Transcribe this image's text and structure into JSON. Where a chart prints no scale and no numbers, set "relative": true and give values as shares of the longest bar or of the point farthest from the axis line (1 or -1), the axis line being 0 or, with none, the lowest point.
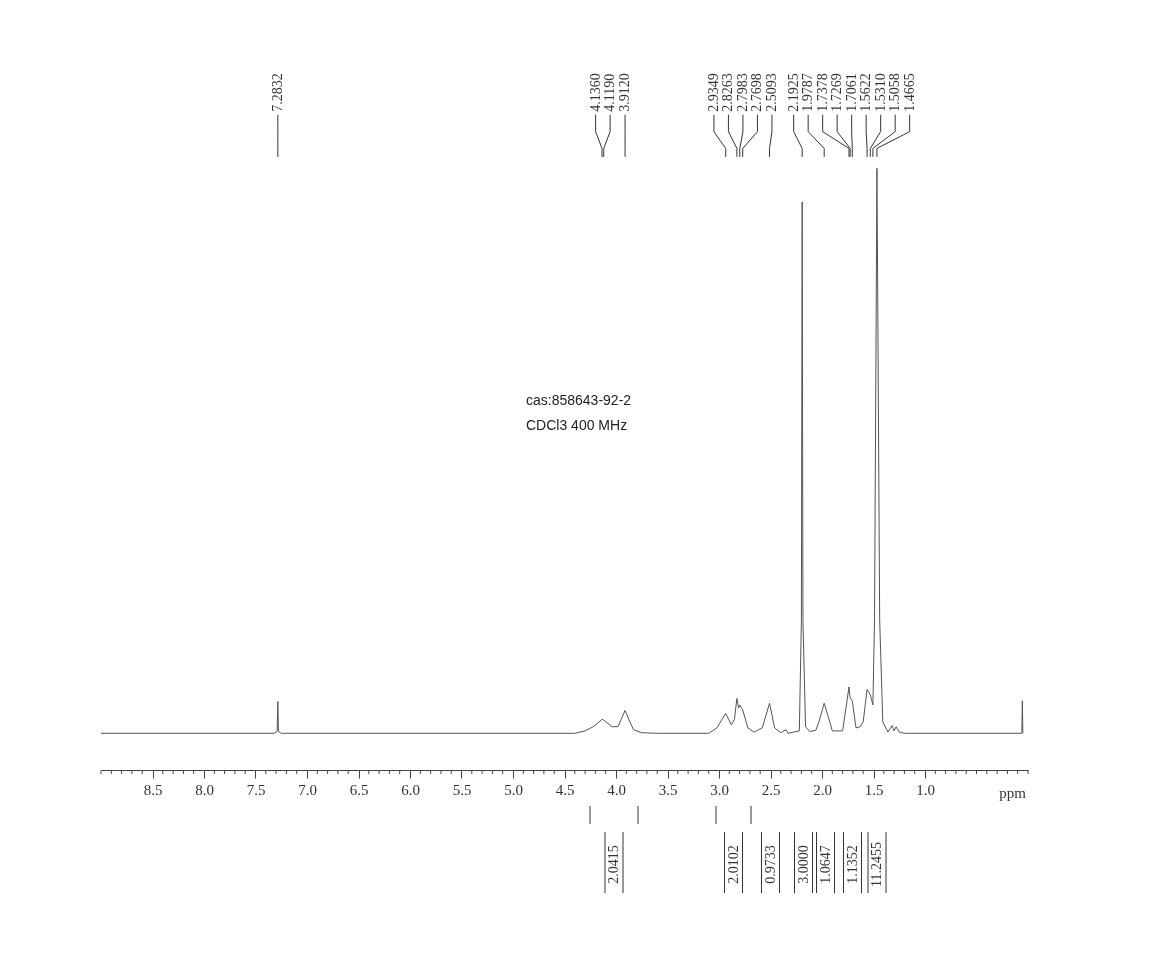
{
  "chart_data": {
    "type": "line",
    "relative": true,
    "xlabel": "ppm",
    "xlim": [
      9.0,
      0.0
    ],
    "xticks": [
      {
        "value": 9.0,
        "label": null
      },
      {
        "value": 8.9,
        "label": null
      },
      {
        "value": 8.8,
        "label": null
      },
      {
        "value": 8.7,
        "label": null
      },
      {
        "value": 8.6,
        "label": null
      },
      {
        "value": 8.5,
        "label": "8.5"
      },
      {
        "value": 8.4,
        "label": null
      },
      {
        "value": 8.3,
        "label": null
      },
      {
        "value": 8.2,
        "label": null
      },
      {
        "value": 8.1,
        "label": null
      },
      {
        "value": 8.0,
        "label": "8.0"
      },
      {
        "value": 7.9,
        "label": null
      },
      {
        "value": 7.8,
        "label": null
      },
      {
        "value": 7.7,
        "label": null
      },
      {
        "value": 7.6,
        "label": null
      },
      {
        "value": 7.5,
        "label": "7.5"
      },
      {
        "value": 7.4,
        "label": null
      },
      {
        "value": 7.3,
        "label": null
      },
      {
        "value": 7.2,
        "label": null
      },
      {
        "value": 7.1,
        "label": null
      },
      {
        "value": 7.0,
        "label": "7.0"
      },
      {
        "value": 6.9,
        "label": null
      },
      {
        "value": 6.8,
        "label": null
      },
      {
        "value": 6.7,
        "label": null
      },
      {
        "value": 6.6,
        "label": null
      },
      {
        "value": 6.5,
        "label": "6.5"
      },
      {
        "value": 6.4,
        "label": null
      },
      {
        "value": 6.3,
        "label": null
      },
      {
        "value": 6.2,
        "label": null
      },
      {
        "value": 6.1,
        "label": null
      },
      {
        "value": 6.0,
        "label": "6.0"
      },
      {
        "value": 5.9,
        "label": null
      },
      {
        "value": 5.8,
        "label": null
      },
      {
        "value": 5.7,
        "label": null
      },
      {
        "value": 5.6,
        "label": null
      },
      {
        "value": 5.5,
        "label": "5.5"
      },
      {
        "value": 5.4,
        "label": null
      },
      {
        "value": 5.3,
        "label": null
      },
      {
        "value": 5.2,
        "label": null
      },
      {
        "value": 5.1,
        "label": null
      },
      {
        "value": 5.0,
        "label": "5.0"
      },
      {
        "value": 4.9,
        "label": null
      },
      {
        "value": 4.8,
        "label": null
      },
      {
        "value": 4.7,
        "label": null
      },
      {
        "value": 4.6,
        "label": null
      },
      {
        "value": 4.5,
        "label": "4.5"
      },
      {
        "value": 4.4,
        "label": null
      },
      {
        "value": 4.3,
        "label": null
      },
      {
        "value": 4.2,
        "label": null
      },
      {
        "value": 4.1,
        "label": null
      },
      {
        "value": 4.0,
        "label": "4.0"
      },
      {
        "value": 3.9,
        "label": null
      },
      {
        "value": 3.8,
        "label": null
      },
      {
        "value": 3.7,
        "label": null
      },
      {
        "value": 3.6,
        "label": null
      },
      {
        "value": 3.5,
        "label": "3.5"
      },
      {
        "value": 3.4,
        "label": null
      },
      {
        "value": 3.3,
        "label": null
      },
      {
        "value": 3.2,
        "label": null
      },
      {
        "value": 3.1,
        "label": null
      },
      {
        "value": 3.0,
        "label": "3.0"
      },
      {
        "value": 2.9,
        "label": null
      },
      {
        "value": 2.8,
        "label": null
      },
      {
        "value": 2.7,
        "label": null
      },
      {
        "value": 2.6,
        "label": null
      },
      {
        "value": 2.5,
        "label": "2.5"
      },
      {
        "value": 2.4,
        "label": null
      },
      {
        "value": 2.3,
        "label": null
      },
      {
        "value": 2.2,
        "label": null
      },
      {
        "value": 2.1,
        "label": null
      },
      {
        "value": 2.0,
        "label": "2.0"
      },
      {
        "value": 1.9,
        "label": null
      },
      {
        "value": 1.8,
        "label": null
      },
      {
        "value": 1.7,
        "label": null
      },
      {
        "value": 1.6,
        "label": null
      },
      {
        "value": 1.5,
        "label": "1.5"
      },
      {
        "value": 1.4,
        "label": null
      },
      {
        "value": 1.3,
        "label": null
      },
      {
        "value": 1.2,
        "label": null
      },
      {
        "value": 1.1,
        "label": null
      },
      {
        "value": 1.0,
        "label": "1.0"
      },
      {
        "value": 0.9,
        "label": null
      },
      {
        "value": 0.8,
        "label": null
      },
      {
        "value": 0.7,
        "label": null
      },
      {
        "value": 0.6,
        "label": null
      },
      {
        "value": 0.5,
        "label": null
      },
      {
        "value": 0.4,
        "label": null
      },
      {
        "value": 0.3,
        "label": null
      },
      {
        "value": 0.2,
        "label": null
      },
      {
        "value": 0.1,
        "label": null
      },
      {
        "value": 0.0,
        "label": null
      }
    ],
    "series": [
      {
        "color": "#555555",
        "x": [
          9.0,
          7.32,
          7.29,
          7.2832,
          7.277,
          7.25,
          4.4,
          4.3,
          4.22,
          4.136,
          4.119,
          4.04,
          3.98,
          3.95,
          3.912,
          3.87,
          3.83,
          3.75,
          3.6,
          3.1,
          3.02,
          2.9349,
          2.88,
          2.85,
          2.8263,
          2.81,
          2.7983,
          2.7698,
          2.72,
          2.66,
          2.58,
          2.5093,
          2.46,
          2.4,
          2.35,
          2.33,
          2.22,
          2.2,
          2.1925,
          2.185,
          2.16,
          2.12,
          2.06,
          2.03,
          1.9787,
          1.94,
          1.9,
          1.8,
          1.7378,
          1.7269,
          1.7061,
          1.67,
          1.63,
          1.6,
          1.5622,
          1.531,
          1.5058,
          1.49,
          1.4665,
          1.44,
          1.41,
          1.36,
          1.32,
          1.3,
          1.28,
          1.25,
          1.2,
          0.06,
          0.055,
          0.05
        ],
        "values": [
          0.061,
          0.061,
          0.064,
          0.114,
          0.064,
          0.061,
          0.061,
          0.065,
          0.072,
          0.084,
          0.083,
          0.072,
          0.072,
          0.084,
          0.099,
          0.082,
          0.067,
          0.062,
          0.061,
          0.061,
          0.07,
          0.094,
          0.075,
          0.084,
          0.119,
          0.103,
          0.108,
          0.1,
          0.07,
          0.063,
          0.07,
          0.111,
          0.07,
          0.062,
          0.067,
          0.061,
          0.065,
          0.249,
          0.944,
          0.249,
          0.072,
          0.064,
          0.066,
          0.08,
          0.111,
          0.089,
          0.065,
          0.065,
          0.138,
          0.12,
          0.115,
          0.07,
          0.072,
          0.08,
          0.134,
          0.125,
          0.108,
          0.249,
          1.0,
          0.249,
          0.08,
          0.063,
          0.074,
          0.065,
          0.072,
          0.063,
          0.061,
          0.061,
          0.115,
          0.061
        ]
      }
    ],
    "annotations": [
      {
        "text": "7.2832",
        "x": 7.2832
      },
      {
        "text": "4.1360",
        "x": 4.136
      },
      {
        "text": "4.1190",
        "x": 4.119
      },
      {
        "text": "3.9120",
        "x": 3.912
      },
      {
        "text": "2.9349",
        "x": 2.9349
      },
      {
        "text": "2.8263",
        "x": 2.8263
      },
      {
        "text": "2.7983",
        "x": 2.7983
      },
      {
        "text": "2.7698",
        "x": 2.7698
      },
      {
        "text": "2.5093",
        "x": 2.5093
      },
      {
        "text": "2.1925",
        "x": 2.1925
      },
      {
        "text": "1.9787",
        "x": 1.9787
      },
      {
        "text": "1.7378",
        "x": 1.7378
      },
      {
        "text": "1.7269",
        "x": 1.7269
      },
      {
        "text": "1.7061",
        "x": 1.7061
      },
      {
        "text": "1.5622",
        "x": 1.5622
      },
      {
        "text": "1.5310",
        "x": 1.531
      },
      {
        "text": "1.5058",
        "x": 1.5058
      },
      {
        "text": "1.4665",
        "x": 1.4665
      },
      "cas:858643-92-2",
      "CDCl3   400 MHz",
      "2.0415",
      "2.0102",
      "0.9733",
      "3.0000",
      "1.0647",
      "1.1352",
      "11.2455"
    ]
  }
}
